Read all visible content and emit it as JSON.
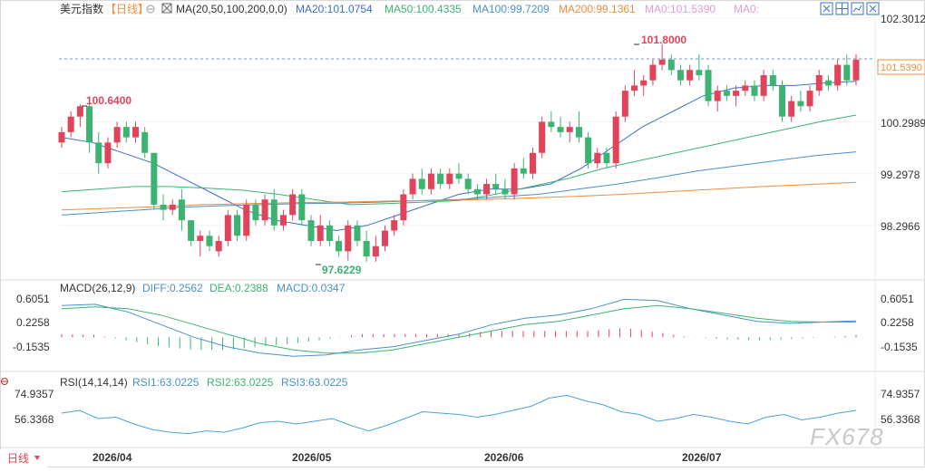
{
  "header": {
    "symbol": "美元指数",
    "period": "【日线】",
    "ma_label": "MA(20,50,100,200,0,0)",
    "ma20": "MA20:101.0754",
    "ma50": "MA50:100.4335",
    "ma100": "MA100:99.7209",
    "ma200": "MA200:99.1361",
    "ma0a": "MA0:101.5390",
    "ma0b": "MA0:"
  },
  "toolbar": {
    "icons": [
      "expand-icon",
      "grid-icon",
      "chart-icon",
      "close-icon"
    ]
  },
  "price_axis": {
    "ticks": [
      "102.3012",
      "101.3001",
      "100.2989",
      "99.2978",
      "98.2966"
    ]
  },
  "annotations": {
    "high": "101.8000",
    "left_high": "100.6400",
    "low": "97.6229",
    "last": "101.5390"
  },
  "macd": {
    "label": "MACD(26,12,9)",
    "diff": "DIFF:0.2562",
    "dea": "DEA:0.2388",
    "macd": "MACD:0.0347",
    "ticks": [
      "0.6051",
      "0.2258",
      "-0.1535"
    ]
  },
  "rsi": {
    "label": "RSI(14,14,14)",
    "rsi1": "RSI1:63.0225",
    "rsi2": "RSI2:63.0225",
    "rsi3": "RSI3:63.0225",
    "ticks": [
      "74.9357",
      "56.3368"
    ]
  },
  "date_axis": {
    "labels": [
      "2026/04",
      "2026/05",
      "2026/06",
      "2026/07"
    ]
  },
  "footer": {
    "period_button": "日线"
  },
  "watermark": "FX678",
  "colors": {
    "up": "#e0435a",
    "down": "#3cb371",
    "ma20": "#3a6fc8",
    "ma50": "#3cb371",
    "ma100": "#4a90c8",
    "ma200": "#f08c3c",
    "macd_diff": "#4a90c8",
    "macd_dea": "#3cb371",
    "last_label": "#f08c3c",
    "high_text": "#e0435a",
    "low_text": "#3cb371"
  },
  "chart_data": [
    {
      "type": "candlestick",
      "title": "美元指数",
      "categories_note": "daily bars, 2026/03 late to 2026/07",
      "x_ticks": [
        "2026/04",
        "2026/05",
        "2026/06",
        "2026/07"
      ],
      "ylim": [
        97.4,
        102.5
      ],
      "ohlc": [
        [
          99.9,
          100.2,
          99.8,
          100.1
        ],
        [
          100.1,
          100.5,
          100.0,
          100.4
        ],
        [
          100.4,
          100.64,
          100.2,
          100.6
        ],
        [
          100.6,
          100.7,
          99.7,
          99.9
        ],
        [
          99.9,
          100.1,
          99.3,
          99.5
        ],
        [
          99.5,
          100.0,
          99.4,
          99.9
        ],
        [
          99.9,
          100.3,
          99.8,
          100.2
        ],
        [
          100.2,
          100.3,
          99.9,
          100.0
        ],
        [
          100.0,
          100.3,
          99.9,
          100.2
        ],
        [
          100.1,
          100.2,
          99.6,
          99.7
        ],
        [
          99.7,
          99.7,
          98.6,
          98.7
        ],
        [
          98.7,
          98.9,
          98.4,
          98.6
        ],
        [
          98.6,
          98.8,
          98.5,
          98.7
        ],
        [
          98.8,
          99.0,
          98.2,
          98.4
        ],
        [
          98.4,
          98.4,
          97.9,
          98.0
        ],
        [
          98.0,
          98.2,
          97.7,
          98.1
        ],
        [
          98.1,
          98.2,
          97.8,
          97.9
        ],
        [
          97.8,
          98.1,
          97.7,
          98.0
        ],
        [
          98.0,
          98.6,
          97.9,
          98.5
        ],
        [
          98.5,
          98.6,
          98.0,
          98.1
        ],
        [
          98.1,
          98.8,
          98.0,
          98.7
        ],
        [
          98.7,
          98.8,
          98.3,
          98.4
        ],
        [
          98.4,
          98.9,
          98.3,
          98.8
        ],
        [
          98.8,
          99.0,
          98.2,
          98.3
        ],
        [
          98.3,
          98.6,
          98.2,
          98.5
        ],
        [
          98.5,
          99.0,
          98.4,
          98.9
        ],
        [
          98.9,
          99.0,
          98.3,
          98.4
        ],
        [
          98.4,
          98.5,
          97.9,
          98.0
        ],
        [
          98.0,
          98.5,
          97.9,
          98.3
        ],
        [
          98.3,
          98.4,
          97.9,
          98.0
        ],
        [
          98.0,
          98.1,
          97.7,
          97.8
        ],
        [
          97.8,
          98.4,
          97.62,
          98.3
        ],
        [
          98.3,
          98.4,
          97.9,
          98.0
        ],
        [
          98.0,
          98.2,
          97.6,
          97.7
        ],
        [
          97.7,
          98.1,
          97.6,
          97.9
        ],
        [
          97.9,
          98.3,
          97.8,
          98.2
        ],
        [
          98.2,
          98.5,
          98.1,
          98.4
        ],
        [
          98.4,
          99.0,
          98.3,
          98.9
        ],
        [
          98.9,
          99.3,
          98.8,
          99.2
        ],
        [
          99.2,
          99.4,
          98.9,
          99.0
        ],
        [
          99.0,
          99.4,
          98.9,
          99.3
        ],
        [
          99.3,
          99.4,
          99.0,
          99.1
        ],
        [
          99.1,
          99.4,
          99.0,
          99.3
        ],
        [
          99.3,
          99.5,
          99.1,
          99.2
        ],
        [
          99.2,
          99.3,
          98.9,
          99.0
        ],
        [
          99.0,
          99.1,
          98.8,
          98.9
        ],
        [
          98.9,
          99.2,
          98.8,
          99.1
        ],
        [
          99.1,
          99.3,
          98.9,
          99.0
        ],
        [
          99.0,
          99.2,
          98.8,
          98.9
        ],
        [
          98.9,
          99.5,
          98.8,
          99.4
        ],
        [
          99.4,
          99.6,
          99.2,
          99.3
        ],
        [
          99.3,
          99.8,
          99.2,
          99.7
        ],
        [
          99.7,
          100.4,
          99.6,
          100.3
        ],
        [
          100.3,
          100.5,
          100.1,
          100.2
        ],
        [
          100.2,
          100.4,
          100.0,
          100.1
        ],
        [
          100.1,
          100.3,
          99.9,
          100.2
        ],
        [
          100.2,
          100.5,
          99.9,
          100.0
        ],
        [
          100.0,
          100.1,
          99.4,
          99.5
        ],
        [
          99.5,
          99.8,
          99.4,
          99.7
        ],
        [
          99.7,
          99.8,
          99.4,
          99.5
        ],
        [
          99.5,
          100.5,
          99.4,
          100.4
        ],
        [
          100.4,
          101.0,
          100.3,
          100.9
        ],
        [
          100.9,
          101.3,
          100.8,
          101.0
        ],
        [
          101.0,
          101.2,
          100.8,
          101.1
        ],
        [
          101.1,
          101.5,
          101.0,
          101.4
        ],
        [
          101.4,
          101.8,
          101.3,
          101.5
        ],
        [
          101.5,
          101.6,
          101.2,
          101.3
        ],
        [
          101.3,
          101.4,
          101.0,
          101.1
        ],
        [
          101.1,
          101.4,
          101.0,
          101.3
        ],
        [
          101.3,
          101.6,
          101.1,
          101.2
        ],
        [
          101.3,
          101.4,
          100.6,
          100.7
        ],
        [
          100.7,
          101.0,
          100.5,
          100.9
        ],
        [
          100.9,
          101.0,
          100.7,
          100.8
        ],
        [
          100.8,
          101.0,
          100.6,
          100.9
        ],
        [
          100.9,
          101.1,
          100.8,
          101.0
        ],
        [
          101.0,
          101.1,
          100.7,
          100.8
        ],
        [
          100.8,
          101.3,
          100.7,
          101.2
        ],
        [
          101.2,
          101.3,
          100.9,
          101.0
        ],
        [
          101.0,
          101.1,
          100.3,
          100.4
        ],
        [
          100.4,
          100.8,
          100.3,
          100.7
        ],
        [
          100.7,
          100.9,
          100.5,
          100.6
        ],
        [
          100.6,
          101.0,
          100.5,
          100.9
        ],
        [
          100.9,
          101.3,
          100.8,
          101.2
        ],
        [
          101.1,
          101.2,
          100.9,
          101.0
        ],
        [
          101.0,
          101.5,
          100.9,
          101.4
        ],
        [
          101.4,
          101.6,
          101.0,
          101.1
        ],
        [
          101.1,
          101.6,
          101.0,
          101.5
        ]
      ],
      "series": [
        {
          "name": "MA20",
          "values": [
            100.0,
            99.9,
            99.7,
            99.5,
            99.2,
            98.9,
            98.6,
            98.4,
            98.3,
            98.2,
            98.3,
            98.5,
            98.7,
            98.9,
            99.0,
            99.0,
            99.1,
            99.4,
            99.8,
            100.2,
            100.5,
            100.8,
            100.95,
            101.0,
            101.0,
            101.05,
            101.08
          ]
        },
        {
          "name": "MA50",
          "values": [
            98.95,
            99.0,
            99.05,
            99.05,
            99.02,
            98.98,
            98.9,
            98.8,
            98.7,
            98.72,
            98.75,
            98.78,
            98.9,
            99.05,
            99.2,
            99.4,
            99.55,
            99.7,
            99.85,
            100.0,
            100.15,
            100.3,
            100.43
          ]
        },
        {
          "name": "MA100",
          "values": [
            98.5,
            98.55,
            98.6,
            98.65,
            98.68,
            98.7,
            98.72,
            98.73,
            98.75,
            98.78,
            98.8,
            98.85,
            98.9,
            99.0,
            99.1,
            99.22,
            99.35,
            99.45,
            99.55,
            99.65,
            99.72
          ]
        },
        {
          "name": "MA200",
          "values": [
            98.6,
            98.63,
            98.66,
            98.7,
            98.72,
            98.74,
            98.75,
            98.77,
            98.78,
            98.8,
            98.83,
            98.86,
            98.9,
            98.95,
            99.0,
            99.05,
            99.09,
            99.13
          ]
        }
      ]
    },
    {
      "type": "bar",
      "title": "MACD(26,12,9)",
      "ylim": [
        -0.45,
        0.8
      ],
      "x_ticks": [
        "2026/04",
        "2026/05",
        "2026/06",
        "2026/07"
      ],
      "series": [
        {
          "name": "DIFF",
          "values": [
            0.5,
            0.52,
            0.4,
            0.2,
            0.0,
            -0.15,
            -0.25,
            -0.3,
            -0.28,
            -0.2,
            -0.15,
            -0.05,
            0.05,
            0.2,
            0.3,
            0.35,
            0.45,
            0.6,
            0.58,
            0.45,
            0.35,
            0.25,
            0.22,
            0.24,
            0.26
          ]
        },
        {
          "name": "DEA",
          "values": [
            0.45,
            0.48,
            0.45,
            0.35,
            0.2,
            0.05,
            -0.1,
            -0.2,
            -0.25,
            -0.25,
            -0.2,
            -0.1,
            0.0,
            0.1,
            0.2,
            0.25,
            0.35,
            0.45,
            0.5,
            0.45,
            0.38,
            0.3,
            0.25,
            0.24,
            0.24
          ]
        },
        {
          "name": "MACD",
          "values": [
            0.05,
            0.04,
            -0.05,
            -0.15,
            -0.2,
            -0.2,
            -0.15,
            -0.1,
            -0.03,
            0.05,
            0.05,
            0.05,
            0.05,
            0.1,
            0.1,
            0.1,
            0.1,
            0.15,
            0.08,
            0.0,
            -0.03,
            -0.05,
            -0.03,
            0.0,
            0.035
          ]
        }
      ]
    },
    {
      "type": "line",
      "title": "RSI(14,14,14)",
      "ylim": [
        43,
        80
      ],
      "x_ticks": [
        "2026/04",
        "2026/05",
        "2026/06",
        "2026/07"
      ],
      "series": [
        {
          "name": "RSI",
          "values": [
            61,
            63,
            57,
            58,
            53,
            49,
            47,
            46,
            48,
            47,
            50,
            54,
            55,
            53,
            55,
            57,
            52,
            48,
            52,
            57,
            62,
            61,
            60,
            58,
            60,
            63,
            66,
            72,
            74,
            70,
            67,
            62,
            60,
            55,
            57,
            60,
            58,
            55,
            53,
            58,
            60,
            56,
            58,
            61,
            63
          ]
        }
      ]
    }
  ]
}
